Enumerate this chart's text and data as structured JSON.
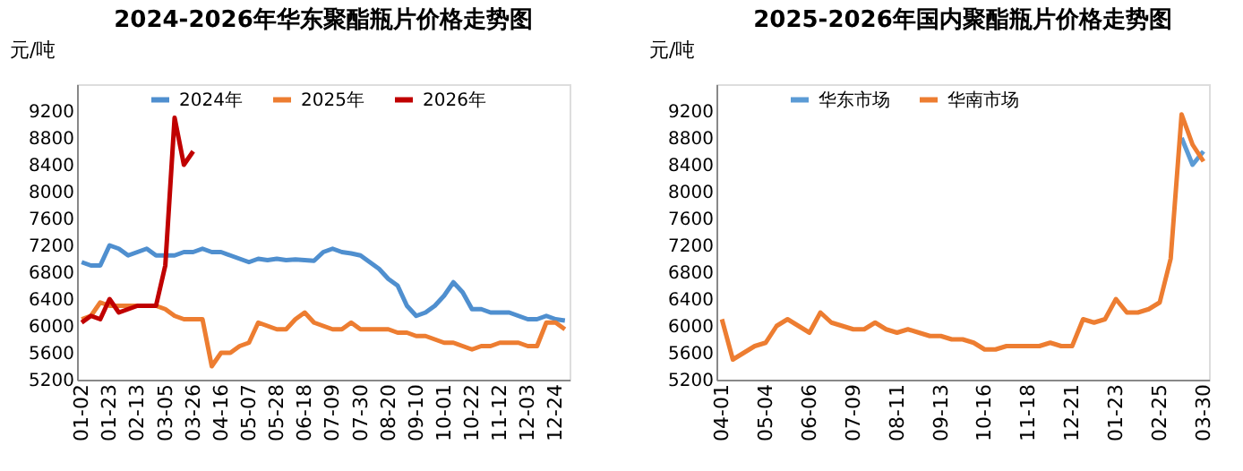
{
  "chart_data": [
    {
      "type": "line",
      "title": "2024-2026年华东聚酯瓶片价格走势图",
      "ylabel": "元/吨",
      "legend": "top",
      "grid": false,
      "ylim": [
        5200,
        9600
      ],
      "yticks": [
        5200,
        5600,
        6000,
        6400,
        6800,
        7200,
        7600,
        8000,
        8400,
        8800,
        9200
      ],
      "categories": [
        "01-02",
        null,
        null,
        "01-23",
        null,
        null,
        "02-13",
        null,
        null,
        "03-05",
        null,
        null,
        "03-26",
        null,
        null,
        "04-16",
        null,
        null,
        "05-07",
        null,
        null,
        "05-28",
        null,
        null,
        "06-18",
        null,
        null,
        "07-09",
        null,
        null,
        "07-30",
        null,
        null,
        "08-20",
        null,
        null,
        "09-10",
        null,
        null,
        "10-01",
        null,
        null,
        "10-22",
        null,
        null,
        "11-12",
        null,
        null,
        "12-03",
        null,
        null,
        "12-24",
        null
      ],
      "series": [
        {
          "name": "2024年",
          "color": "#4f8fcf",
          "values": [
            6950,
            6900,
            6900,
            7200,
            7150,
            7050,
            7100,
            7150,
            7050,
            7050,
            7050,
            7100,
            7100,
            7150,
            7100,
            7100,
            7050,
            7000,
            6950,
            7000,
            6980,
            7000,
            6980,
            6990,
            6980,
            6970,
            7100,
            7150,
            7100,
            7080,
            7050,
            6950,
            6850,
            6700,
            6600,
            6300,
            6150,
            6200,
            6300,
            6450,
            6650,
            6500,
            6250,
            6250,
            6200,
            6200,
            6200,
            6150,
            6100,
            6100,
            6150,
            6100,
            6080
          ]
        },
        {
          "name": "2025年",
          "color": "#ed7d31",
          "values": [
            6100,
            6150,
            6350,
            6300,
            6300,
            6300,
            6300,
            6300,
            6300,
            6250,
            6150,
            6100,
            6100,
            6100,
            5400,
            5600,
            5600,
            5700,
            5750,
            6050,
            6000,
            5950,
            5950,
            6100,
            6200,
            6050,
            6000,
            5950,
            5950,
            6050,
            5950,
            5950,
            5950,
            5950,
            5900,
            5900,
            5850,
            5850,
            5800,
            5750,
            5750,
            5700,
            5650,
            5700,
            5700,
            5750,
            5750,
            5750,
            5700,
            5700,
            6050,
            6050,
            5950
          ]
        },
        {
          "name": "2026年",
          "color": "#c00000",
          "values": [
            6050,
            6150,
            6100,
            6400,
            6200,
            6250,
            6300,
            6300,
            6300,
            6900,
            9100,
            8400,
            8600,
            null,
            null,
            null,
            null,
            null,
            null,
            null,
            null,
            null,
            null,
            null,
            null,
            null,
            null,
            null,
            null,
            null,
            null,
            null,
            null,
            null,
            null,
            null,
            null,
            null,
            null,
            null,
            null,
            null,
            null,
            null,
            null,
            null,
            null,
            null,
            null,
            null,
            null,
            null,
            null
          ]
        }
      ]
    },
    {
      "type": "line",
      "title": "2025-2026年国内聚酯瓶片价格走势图",
      "ylabel": "元/吨",
      "legend": "top",
      "grid": false,
      "ylim": [
        5200,
        9600
      ],
      "yticks": [
        5200,
        5600,
        6000,
        6400,
        6800,
        7200,
        7600,
        8000,
        8400,
        8800,
        9200
      ],
      "categories": [
        "04-01",
        null,
        null,
        null,
        "05-04",
        null,
        null,
        null,
        "06-06",
        null,
        null,
        null,
        "07-09",
        null,
        null,
        null,
        "08-11",
        null,
        null,
        null,
        "09-13",
        null,
        null,
        null,
        "10-16",
        null,
        null,
        null,
        "11-18",
        null,
        null,
        null,
        "12-21",
        null,
        null,
        null,
        "01-23",
        null,
        null,
        null,
        "02-25",
        null,
        null,
        null,
        "03-30"
      ],
      "series": [
        {
          "name": "华东市场",
          "color": "#5b9bd5",
          "values": [
            null,
            null,
            null,
            null,
            null,
            null,
            null,
            null,
            null,
            null,
            null,
            null,
            null,
            null,
            null,
            null,
            null,
            null,
            null,
            null,
            null,
            null,
            null,
            null,
            null,
            null,
            null,
            null,
            null,
            null,
            null,
            null,
            null,
            null,
            null,
            null,
            null,
            null,
            null,
            null,
            null,
            null,
            8800,
            8400,
            8600
          ]
        },
        {
          "name": "华南市场",
          "color": "#ed7d31",
          "values": [
            6100,
            5500,
            5600,
            5700,
            5750,
            6000,
            6100,
            6000,
            5900,
            6200,
            6050,
            6000,
            5950,
            5950,
            6050,
            5950,
            5900,
            5950,
            5900,
            5850,
            5850,
            5800,
            5800,
            5750,
            5650,
            5650,
            5700,
            5700,
            5700,
            5700,
            5750,
            5700,
            5700,
            6100,
            6050,
            6100,
            6400,
            6200,
            6200,
            6250,
            6350,
            7000,
            9150,
            8700,
            8450
          ]
        }
      ]
    }
  ]
}
